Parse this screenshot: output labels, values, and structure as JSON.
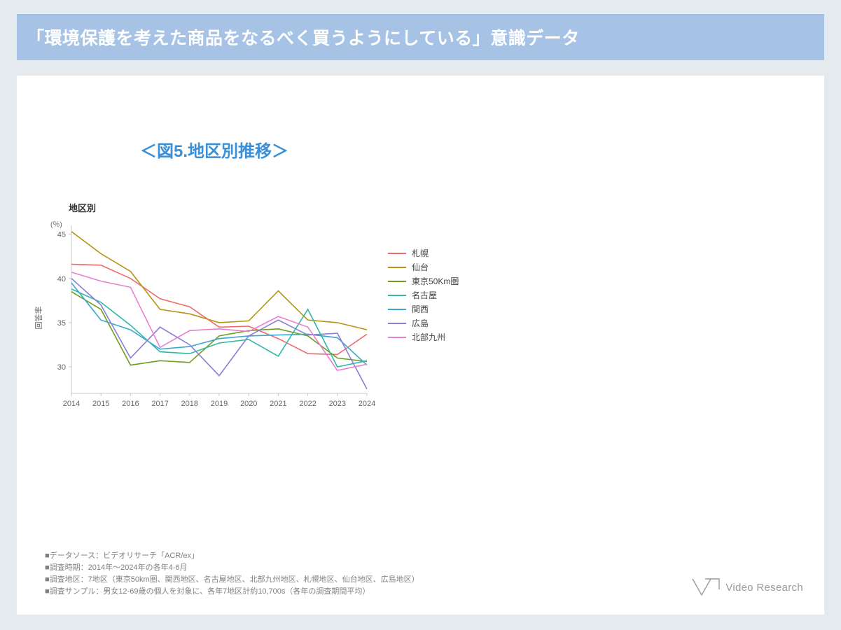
{
  "header": {
    "title": "「環境保護を考えた商品をなるべく買うようにしている」意識データ"
  },
  "chart": {
    "title": "＜図5.地区別推移＞",
    "small_title": "地区別",
    "type": "line",
    "y_axis_label": "回答率",
    "y_unit": "(％)",
    "ylim": [
      27,
      46
    ],
    "yticks": [
      30,
      35,
      40,
      45
    ],
    "categories": [
      "2014",
      "2015",
      "2016",
      "2017",
      "2018",
      "2019",
      "2020",
      "2021",
      "2022",
      "2023",
      "2024"
    ],
    "background_color": "#ffffff",
    "grid_color": "#c9c9c9",
    "axis_color": "#c9c9c9",
    "tick_fontsize": 11,
    "title_fontsize": 24,
    "title_color": "#3b8fd6",
    "line_width": 1.6,
    "series": [
      {
        "name": "札幌",
        "color": "#ef6a6a",
        "values": [
          41.6,
          41.5,
          40.0,
          37.7,
          36.8,
          34.5,
          34.6,
          33.2,
          31.5,
          31.4,
          33.7
        ]
      },
      {
        "name": "仙台",
        "color": "#b69516",
        "values": [
          45.3,
          42.8,
          40.8,
          36.5,
          36.0,
          35.0,
          35.2,
          38.6,
          35.3,
          35.0,
          34.2
        ]
      },
      {
        "name": "東京50Km圏",
        "color": "#6e9e1f",
        "values": [
          38.5,
          36.5,
          30.2,
          30.7,
          30.5,
          33.5,
          34.1,
          34.3,
          33.5,
          31.0,
          30.6
        ]
      },
      {
        "name": "名古屋",
        "color": "#2fb8a6",
        "values": [
          38.8,
          37.3,
          34.7,
          31.7,
          31.5,
          32.7,
          33.1,
          31.2,
          36.5,
          30.0,
          30.7
        ]
      },
      {
        "name": "関西",
        "color": "#3aa7d2",
        "values": [
          39.5,
          35.3,
          34.2,
          32.0,
          32.3,
          33.2,
          33.5,
          33.6,
          33.7,
          33.3,
          30.2
        ]
      },
      {
        "name": "広島",
        "color": "#8a7ed6",
        "values": [
          40.0,
          37.0,
          31.0,
          34.5,
          32.5,
          29.0,
          33.5,
          35.3,
          33.6,
          33.8,
          27.5
        ]
      },
      {
        "name": "北部九州",
        "color": "#e87fd0",
        "values": [
          40.7,
          39.7,
          39.0,
          32.2,
          34.1,
          34.3,
          34.0,
          35.7,
          34.5,
          29.6,
          30.3
        ]
      }
    ],
    "legend": {
      "x_offset_right": 20
    }
  },
  "footer": {
    "lines": [
      "■データソース：ビデオリサーチ「ACR/ex」",
      "■調査時期：2014年〜2024年の各年4-6月",
      "■調査地区：7地区（東京50km圏、関西地区、名古屋地区、北部九州地区、札幌地区、仙台地区、広島地区）",
      "■調査サンプル：男女12-69歳の個人を対象に、各年7地区計約10,700s（各年の調査期間平均）"
    ],
    "color": "#808080",
    "fontsize": 11
  },
  "logo": {
    "text": "Video Research",
    "color": "#9a9a9a"
  }
}
